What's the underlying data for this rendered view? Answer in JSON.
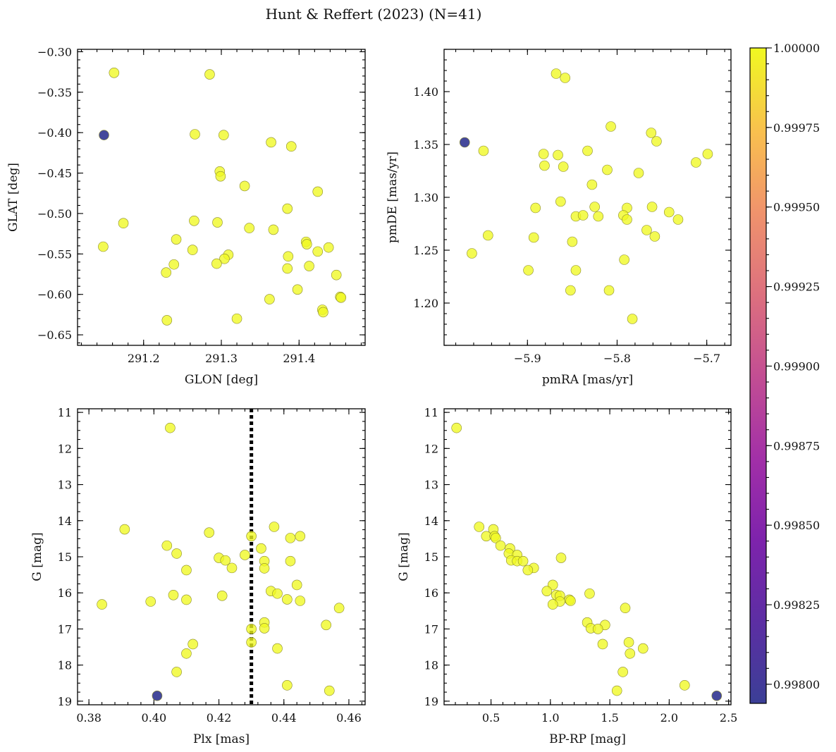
{
  "figure": {
    "title": "Hunt & Reffert (2023) (N=41)"
  },
  "colorbar": {
    "colormap": "plasma",
    "vmin": 0.99794,
    "vmax": 1.0,
    "ticks": [
      1.0,
      0.99975,
      0.9995,
      0.99925,
      0.999,
      0.99875,
      0.9985,
      0.99825,
      0.998
    ],
    "tick_labels": [
      "1.00000",
      "0.99975",
      "0.99950",
      "0.99925",
      "0.99900",
      "0.99875",
      "0.99850",
      "0.99825",
      "0.99800"
    ],
    "top_color": "#f0f921",
    "bottom_color": "#3b3f96"
  },
  "chart_data": [
    {
      "type": "scatter",
      "id": "glon-glat",
      "xlabel": "GLON [deg]",
      "ylabel": "GLAT [deg]",
      "xlim": [
        291.115,
        291.485
      ],
      "ylim": [
        -0.663,
        -0.297
      ],
      "y_inverted": false,
      "xticks": [
        291.2,
        291.3,
        291.4
      ],
      "xtick_labels": [
        "291.2",
        "291.3",
        "291.4"
      ],
      "yticks": [
        -0.3,
        -0.35,
        -0.4,
        -0.45,
        -0.5,
        -0.55,
        -0.6,
        -0.65
      ],
      "ytick_labels": [
        "−0.30",
        "−0.35",
        "−0.40",
        "−0.45",
        "−0.50",
        "−0.55",
        "−0.60",
        "−0.65"
      ],
      "points": [
        {
          "x": 291.162,
          "y": -0.326,
          "p": 1.0
        },
        {
          "x": 291.285,
          "y": -0.328,
          "p": 1.0
        },
        {
          "x": 291.266,
          "y": -0.402,
          "p": 1.0
        },
        {
          "x": 291.303,
          "y": -0.403,
          "p": 1.0
        },
        {
          "x": 291.364,
          "y": -0.412,
          "p": 1.0
        },
        {
          "x": 291.39,
          "y": -0.417,
          "p": 1.0
        },
        {
          "x": 291.298,
          "y": -0.448,
          "p": 1.0
        },
        {
          "x": 291.299,
          "y": -0.454,
          "p": 1.0
        },
        {
          "x": 291.33,
          "y": -0.466,
          "p": 1.0
        },
        {
          "x": 291.424,
          "y": -0.473,
          "p": 1.0
        },
        {
          "x": 291.385,
          "y": -0.494,
          "p": 1.0
        },
        {
          "x": 291.265,
          "y": -0.509,
          "p": 1.0
        },
        {
          "x": 291.295,
          "y": -0.511,
          "p": 1.0
        },
        {
          "x": 291.174,
          "y": -0.512,
          "p": 1.0
        },
        {
          "x": 291.336,
          "y": -0.518,
          "p": 1.0
        },
        {
          "x": 291.367,
          "y": -0.52,
          "p": 1.0
        },
        {
          "x": 291.242,
          "y": -0.532,
          "p": 1.0
        },
        {
          "x": 291.409,
          "y": -0.535,
          "p": 1.0
        },
        {
          "x": 291.41,
          "y": -0.538,
          "p": 1.0
        },
        {
          "x": 291.148,
          "y": -0.541,
          "p": 1.0
        },
        {
          "x": 291.438,
          "y": -0.542,
          "p": 1.0
        },
        {
          "x": 291.263,
          "y": -0.545,
          "p": 1.0
        },
        {
          "x": 291.424,
          "y": -0.547,
          "p": 1.0
        },
        {
          "x": 291.309,
          "y": -0.551,
          "p": 1.0
        },
        {
          "x": 291.386,
          "y": -0.553,
          "p": 1.0
        },
        {
          "x": 291.304,
          "y": -0.556,
          "p": 1.0
        },
        {
          "x": 291.294,
          "y": -0.562,
          "p": 1.0
        },
        {
          "x": 291.239,
          "y": -0.563,
          "p": 1.0
        },
        {
          "x": 291.413,
          "y": -0.565,
          "p": 1.0
        },
        {
          "x": 291.385,
          "y": -0.568,
          "p": 1.0
        },
        {
          "x": 291.229,
          "y": -0.573,
          "p": 1.0
        },
        {
          "x": 291.448,
          "y": -0.576,
          "p": 1.0
        },
        {
          "x": 291.398,
          "y": -0.594,
          "p": 1.0
        },
        {
          "x": 291.453,
          "y": -0.603,
          "p": 1.0
        },
        {
          "x": 291.454,
          "y": -0.604,
          "p": 1.0
        },
        {
          "x": 291.362,
          "y": -0.606,
          "p": 1.0
        },
        {
          "x": 291.43,
          "y": -0.619,
          "p": 1.0
        },
        {
          "x": 291.431,
          "y": -0.622,
          "p": 1.0
        },
        {
          "x": 291.32,
          "y": -0.63,
          "p": 1.0
        },
        {
          "x": 291.23,
          "y": -0.632,
          "p": 1.0
        },
        {
          "x": 291.149,
          "y": -0.403,
          "p": 0.99794
        }
      ]
    },
    {
      "type": "scatter",
      "id": "pmra-pmde",
      "xlabel": "pmRA [mas/yr]",
      "ylabel": "pmDE [mas/yr]",
      "xlim": [
        -5.993,
        -5.673
      ],
      "ylim": [
        1.16,
        1.44
      ],
      "y_inverted": false,
      "xticks": [
        -5.9,
        -5.8,
        -5.7
      ],
      "xtick_labels": [
        "−5.9",
        "−5.8",
        "−5.7"
      ],
      "yticks": [
        1.2,
        1.25,
        1.3,
        1.35,
        1.4
      ],
      "ytick_labels": [
        "1.20",
        "1.25",
        "1.30",
        "1.35",
        "1.40"
      ],
      "points": [
        {
          "x": -5.868,
          "y": 1.417,
          "p": 1.0
        },
        {
          "x": -5.858,
          "y": 1.413,
          "p": 1.0
        },
        {
          "x": -5.807,
          "y": 1.367,
          "p": 1.0
        },
        {
          "x": -5.762,
          "y": 1.361,
          "p": 1.0
        },
        {
          "x": -5.756,
          "y": 1.353,
          "p": 1.0
        },
        {
          "x": -5.949,
          "y": 1.344,
          "p": 1.0
        },
        {
          "x": -5.833,
          "y": 1.344,
          "p": 1.0
        },
        {
          "x": -5.882,
          "y": 1.341,
          "p": 1.0
        },
        {
          "x": -5.866,
          "y": 1.34,
          "p": 1.0
        },
        {
          "x": -5.699,
          "y": 1.341,
          "p": 1.0
        },
        {
          "x": -5.712,
          "y": 1.333,
          "p": 1.0
        },
        {
          "x": -5.881,
          "y": 1.33,
          "p": 1.0
        },
        {
          "x": -5.86,
          "y": 1.329,
          "p": 1.0
        },
        {
          "x": -5.811,
          "y": 1.326,
          "p": 1.0
        },
        {
          "x": -5.776,
          "y": 1.323,
          "p": 1.0
        },
        {
          "x": -5.828,
          "y": 1.312,
          "p": 1.0
        },
        {
          "x": -5.863,
          "y": 1.296,
          "p": 1.0
        },
        {
          "x": -5.825,
          "y": 1.291,
          "p": 1.0
        },
        {
          "x": -5.891,
          "y": 1.29,
          "p": 1.0
        },
        {
          "x": -5.789,
          "y": 1.29,
          "p": 1.0
        },
        {
          "x": -5.761,
          "y": 1.291,
          "p": 1.0
        },
        {
          "x": -5.742,
          "y": 1.286,
          "p": 1.0
        },
        {
          "x": -5.846,
          "y": 1.282,
          "p": 1.0
        },
        {
          "x": -5.838,
          "y": 1.283,
          "p": 1.0
        },
        {
          "x": -5.821,
          "y": 1.282,
          "p": 1.0
        },
        {
          "x": -5.793,
          "y": 1.283,
          "p": 1.0
        },
        {
          "x": -5.789,
          "y": 1.279,
          "p": 1.0
        },
        {
          "x": -5.732,
          "y": 1.279,
          "p": 1.0
        },
        {
          "x": -5.767,
          "y": 1.269,
          "p": 1.0
        },
        {
          "x": -5.944,
          "y": 1.264,
          "p": 1.0
        },
        {
          "x": -5.758,
          "y": 1.263,
          "p": 1.0
        },
        {
          "x": -5.893,
          "y": 1.262,
          "p": 1.0
        },
        {
          "x": -5.85,
          "y": 1.258,
          "p": 1.0
        },
        {
          "x": -5.962,
          "y": 1.247,
          "p": 1.0
        },
        {
          "x": -5.792,
          "y": 1.241,
          "p": 1.0
        },
        {
          "x": -5.899,
          "y": 1.231,
          "p": 1.0
        },
        {
          "x": -5.846,
          "y": 1.231,
          "p": 1.0
        },
        {
          "x": -5.852,
          "y": 1.212,
          "p": 1.0
        },
        {
          "x": -5.809,
          "y": 1.212,
          "p": 1.0
        },
        {
          "x": -5.783,
          "y": 1.185,
          "p": 1.0
        },
        {
          "x": -5.97,
          "y": 1.352,
          "p": 0.99794
        }
      ]
    },
    {
      "type": "scatter",
      "id": "plx-g",
      "xlabel": "Plx [mas]",
      "ylabel": "G [mag]",
      "xlim": [
        0.3765,
        0.465
      ],
      "ylim": [
        19.1,
        10.9
      ],
      "y_inverted": true,
      "xticks": [
        0.38,
        0.4,
        0.42,
        0.44,
        0.46
      ],
      "xtick_labels": [
        "0.38",
        "0.40",
        "0.42",
        "0.44",
        "0.46"
      ],
      "yticks": [
        11,
        12,
        13,
        14,
        15,
        16,
        17,
        18,
        19
      ],
      "ytick_labels": [
        "11",
        "12",
        "13",
        "14",
        "15",
        "16",
        "17",
        "18",
        "19"
      ],
      "vline": {
        "x": 0.43,
        "style": "dotted"
      },
      "points": [
        {
          "x": 0.405,
          "y": 11.43,
          "p": 1.0
        },
        {
          "x": 0.437,
          "y": 14.17,
          "p": 1.0
        },
        {
          "x": 0.391,
          "y": 14.24,
          "p": 1.0
        },
        {
          "x": 0.417,
          "y": 14.33,
          "p": 1.0
        },
        {
          "x": 0.43,
          "y": 14.43,
          "p": 1.0
        },
        {
          "x": 0.445,
          "y": 14.43,
          "p": 1.0
        },
        {
          "x": 0.442,
          "y": 14.48,
          "p": 1.0
        },
        {
          "x": 0.404,
          "y": 14.69,
          "p": 1.0
        },
        {
          "x": 0.433,
          "y": 14.77,
          "p": 1.0
        },
        {
          "x": 0.407,
          "y": 14.91,
          "p": 1.0
        },
        {
          "x": 0.428,
          "y": 14.95,
          "p": 1.0
        },
        {
          "x": 0.42,
          "y": 15.03,
          "p": 1.0
        },
        {
          "x": 0.422,
          "y": 15.1,
          "p": 1.0
        },
        {
          "x": 0.434,
          "y": 15.12,
          "p": 1.0
        },
        {
          "x": 0.442,
          "y": 15.12,
          "p": 1.0
        },
        {
          "x": 0.424,
          "y": 15.31,
          "p": 1.0
        },
        {
          "x": 0.434,
          "y": 15.32,
          "p": 1.0
        },
        {
          "x": 0.41,
          "y": 15.37,
          "p": 1.0
        },
        {
          "x": 0.444,
          "y": 15.78,
          "p": 1.0
        },
        {
          "x": 0.436,
          "y": 15.95,
          "p": 1.0
        },
        {
          "x": 0.438,
          "y": 16.02,
          "p": 1.0
        },
        {
          "x": 0.406,
          "y": 16.06,
          "p": 1.0
        },
        {
          "x": 0.421,
          "y": 16.08,
          "p": 1.0
        },
        {
          "x": 0.41,
          "y": 16.19,
          "p": 1.0
        },
        {
          "x": 0.441,
          "y": 16.18,
          "p": 1.0
        },
        {
          "x": 0.445,
          "y": 16.22,
          "p": 1.0
        },
        {
          "x": 0.399,
          "y": 16.24,
          "p": 1.0
        },
        {
          "x": 0.384,
          "y": 16.32,
          "p": 1.0
        },
        {
          "x": 0.457,
          "y": 16.42,
          "p": 1.0
        },
        {
          "x": 0.434,
          "y": 16.82,
          "p": 1.0
        },
        {
          "x": 0.453,
          "y": 16.89,
          "p": 1.0
        },
        {
          "x": 0.434,
          "y": 16.98,
          "p": 1.0
        },
        {
          "x": 0.43,
          "y": 17.0,
          "p": 1.0
        },
        {
          "x": 0.43,
          "y": 17.37,
          "p": 1.0
        },
        {
          "x": 0.412,
          "y": 17.42,
          "p": 1.0
        },
        {
          "x": 0.438,
          "y": 17.54,
          "p": 1.0
        },
        {
          "x": 0.41,
          "y": 17.68,
          "p": 1.0
        },
        {
          "x": 0.407,
          "y": 18.19,
          "p": 1.0
        },
        {
          "x": 0.441,
          "y": 18.56,
          "p": 1.0
        },
        {
          "x": 0.454,
          "y": 18.71,
          "p": 1.0
        },
        {
          "x": 0.401,
          "y": 18.85,
          "p": 0.99794
        }
      ]
    },
    {
      "type": "scatter",
      "id": "bprp-g",
      "xlabel": "BP-RP [mag]",
      "ylabel": "G [mag]",
      "xlim": [
        0.105,
        2.52
      ],
      "ylim": [
        19.1,
        10.9
      ],
      "y_inverted": true,
      "xticks": [
        0.5,
        1.0,
        1.5,
        2.0,
        2.5
      ],
      "xtick_labels": [
        "0.5",
        "1.0",
        "1.5",
        "2.0",
        "2.5"
      ],
      "yticks": [
        11,
        12,
        13,
        14,
        15,
        16,
        17,
        18,
        19
      ],
      "ytick_labels": [
        "11",
        "12",
        "13",
        "14",
        "15",
        "16",
        "17",
        "18",
        "19"
      ],
      "points": [
        {
          "x": 0.21,
          "y": 11.43,
          "p": 1.0
        },
        {
          "x": 0.4,
          "y": 14.17,
          "p": 1.0
        },
        {
          "x": 0.52,
          "y": 14.24,
          "p": 1.0
        },
        {
          "x": 0.46,
          "y": 14.43,
          "p": 1.0
        },
        {
          "x": 0.53,
          "y": 14.43,
          "p": 1.0
        },
        {
          "x": 0.54,
          "y": 14.48,
          "p": 1.0
        },
        {
          "x": 0.58,
          "y": 14.69,
          "p": 1.0
        },
        {
          "x": 0.66,
          "y": 14.77,
          "p": 1.0
        },
        {
          "x": 0.65,
          "y": 14.91,
          "p": 1.0
        },
        {
          "x": 0.72,
          "y": 14.95,
          "p": 1.0
        },
        {
          "x": 1.09,
          "y": 15.03,
          "p": 1.0
        },
        {
          "x": 0.67,
          "y": 15.1,
          "p": 1.0
        },
        {
          "x": 0.72,
          "y": 15.12,
          "p": 1.0
        },
        {
          "x": 0.77,
          "y": 15.12,
          "p": 1.0
        },
        {
          "x": 0.86,
          "y": 15.31,
          "p": 1.0
        },
        {
          "x": 0.81,
          "y": 15.37,
          "p": 1.0
        },
        {
          "x": 1.02,
          "y": 15.78,
          "p": 1.0
        },
        {
          "x": 0.97,
          "y": 15.95,
          "p": 1.0
        },
        {
          "x": 1.05,
          "y": 16.06,
          "p": 1.0
        },
        {
          "x": 1.33,
          "y": 16.02,
          "p": 1.0
        },
        {
          "x": 1.08,
          "y": 16.08,
          "p": 1.0
        },
        {
          "x": 1.16,
          "y": 16.19,
          "p": 1.0
        },
        {
          "x": 1.17,
          "y": 16.22,
          "p": 1.0
        },
        {
          "x": 1.08,
          "y": 16.24,
          "p": 1.0
        },
        {
          "x": 1.02,
          "y": 16.32,
          "p": 1.0
        },
        {
          "x": 1.63,
          "y": 16.42,
          "p": 1.0
        },
        {
          "x": 1.31,
          "y": 16.82,
          "p": 1.0
        },
        {
          "x": 1.46,
          "y": 16.89,
          "p": 1.0
        },
        {
          "x": 1.34,
          "y": 16.98,
          "p": 1.0
        },
        {
          "x": 1.4,
          "y": 17.0,
          "p": 1.0
        },
        {
          "x": 1.66,
          "y": 17.37,
          "p": 1.0
        },
        {
          "x": 1.44,
          "y": 17.42,
          "p": 1.0
        },
        {
          "x": 1.78,
          "y": 17.54,
          "p": 1.0
        },
        {
          "x": 1.67,
          "y": 17.68,
          "p": 1.0
        },
        {
          "x": 1.61,
          "y": 18.19,
          "p": 1.0
        },
        {
          "x": 2.13,
          "y": 18.56,
          "p": 1.0
        },
        {
          "x": 1.56,
          "y": 18.71,
          "p": 1.0
        },
        {
          "x": 2.4,
          "y": 18.85,
          "p": 0.99794
        }
      ]
    }
  ]
}
